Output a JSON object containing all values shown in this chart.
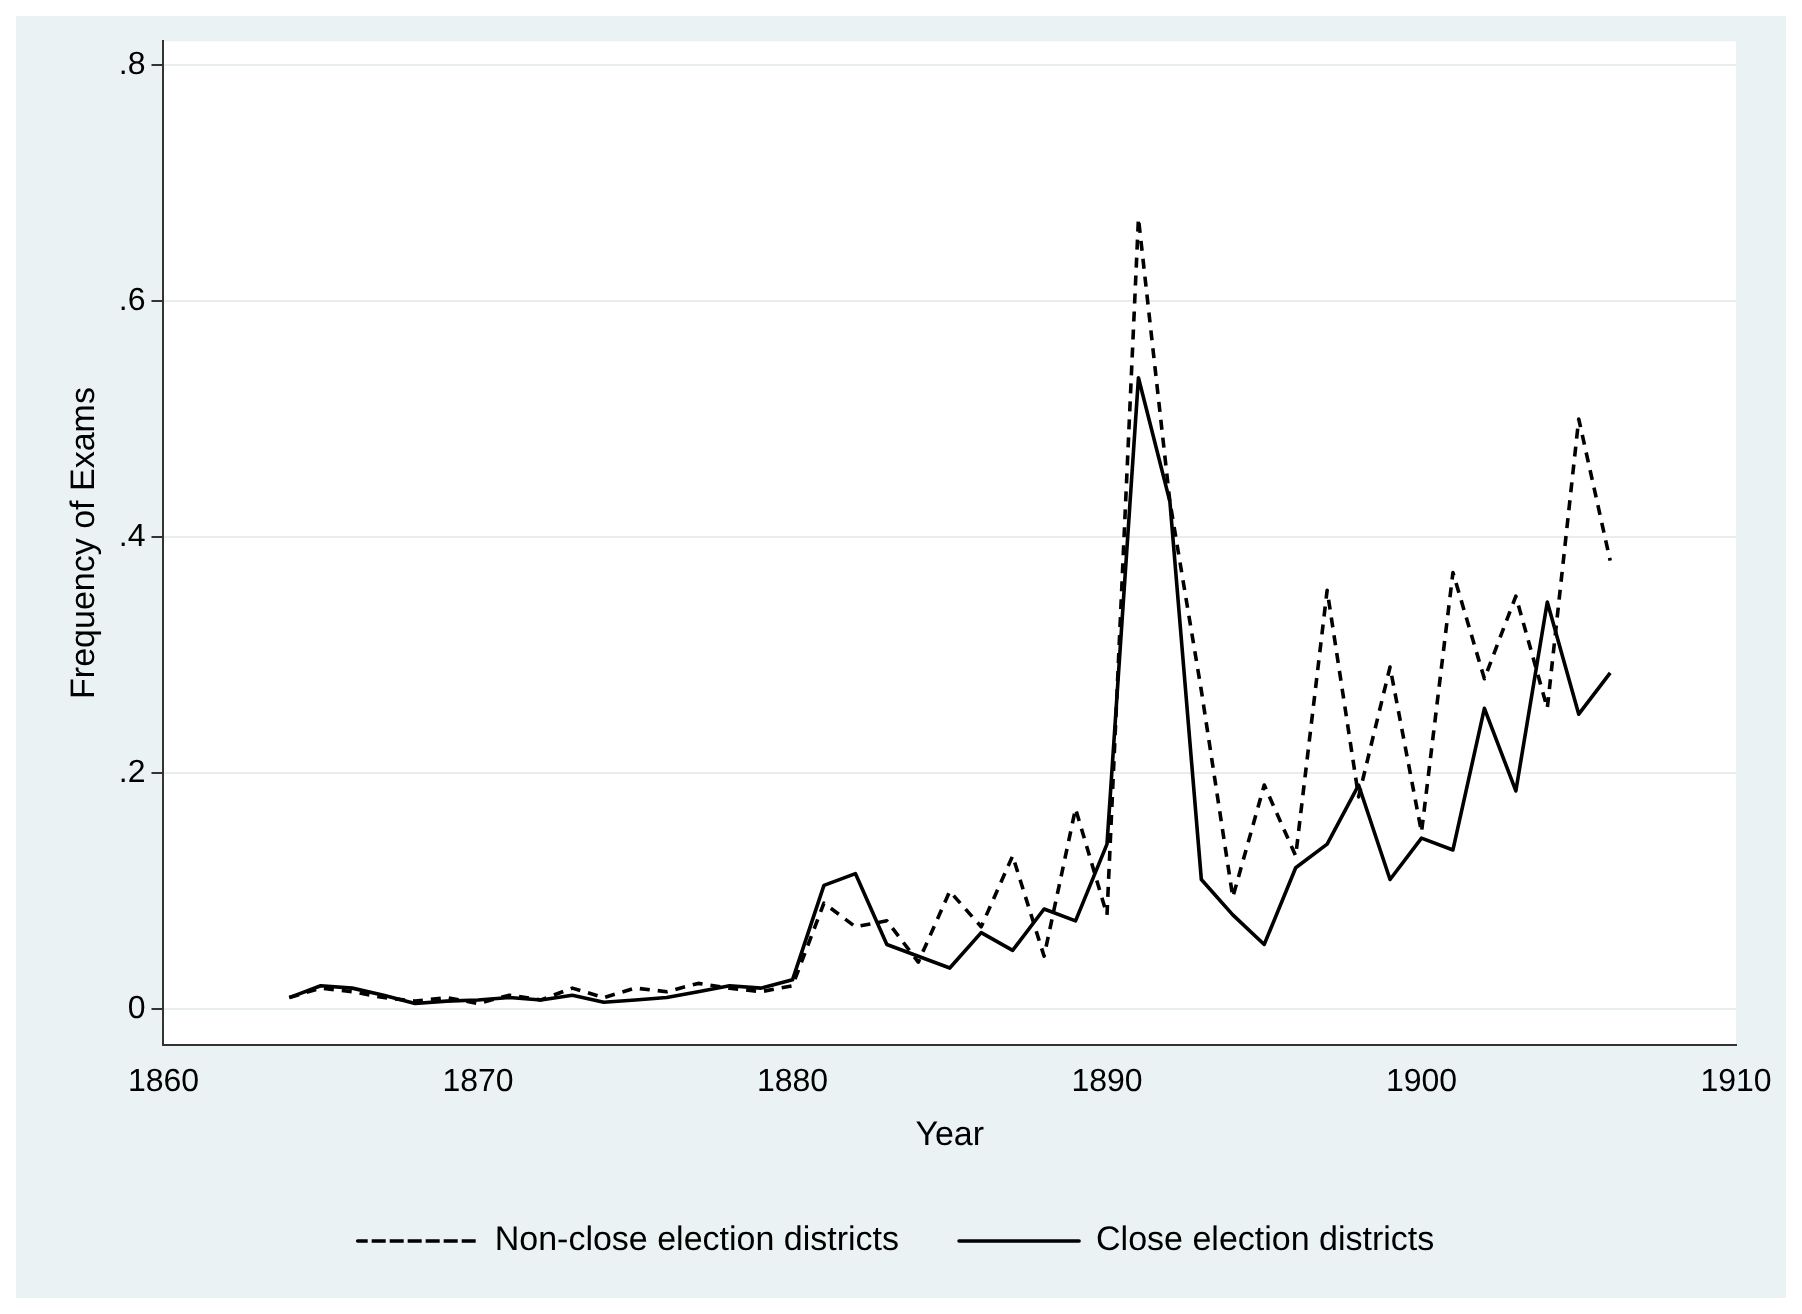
{
  "chart_data": {
    "type": "line",
    "xlabel": "Year",
    "ylabel": "Frequency of Exams",
    "x": [
      1864,
      1865,
      1866,
      1867,
      1868,
      1869,
      1870,
      1871,
      1872,
      1873,
      1874,
      1875,
      1876,
      1877,
      1878,
      1879,
      1880,
      1881,
      1882,
      1883,
      1884,
      1885,
      1886,
      1887,
      1888,
      1889,
      1890,
      1891,
      1892,
      1893,
      1894,
      1895,
      1896,
      1897,
      1898,
      1899,
      1900,
      1901,
      1902,
      1903,
      1904,
      1905,
      1906
    ],
    "series": [
      {
        "name": "Non-close election districts",
        "color": "#000000",
        "line_style": "dashed",
        "values": [
          0.01,
          0.018,
          0.015,
          0.01,
          0.007,
          0.01,
          0.005,
          0.012,
          0.008,
          0.018,
          0.01,
          0.018,
          0.015,
          0.022,
          0.018,
          0.015,
          0.02,
          0.09,
          0.07,
          0.075,
          0.04,
          0.1,
          0.07,
          0.13,
          0.045,
          0.17,
          0.08,
          0.67,
          0.43,
          0.27,
          0.095,
          0.19,
          0.13,
          0.355,
          0.18,
          0.29,
          0.15,
          0.37,
          0.28,
          0.35,
          0.255,
          0.5,
          0.38
        ]
      },
      {
        "name": "Close election districts",
        "color": "#000000",
        "line_style": "solid",
        "values": [
          0.01,
          0.02,
          0.018,
          0.012,
          0.005,
          0.007,
          0.008,
          0.01,
          0.008,
          0.012,
          0.006,
          0.008,
          0.01,
          0.015,
          0.02,
          0.018,
          0.025,
          0.105,
          0.115,
          0.055,
          0.045,
          0.035,
          0.065,
          0.05,
          0.085,
          0.075,
          0.14,
          0.535,
          0.43,
          0.11,
          0.08,
          0.055,
          0.12,
          0.14,
          0.19,
          0.11,
          0.145,
          0.135,
          0.255,
          0.185,
          0.345,
          0.25,
          0.285
        ]
      }
    ],
    "xlim": [
      1860,
      1910
    ],
    "xticks": [
      1860,
      1870,
      1880,
      1890,
      1900,
      1910
    ],
    "ylim": [
      -0.03,
      0.82
    ],
    "yticks": [
      {
        "value": 0,
        "label": "0"
      },
      {
        "value": 0.2,
        "label": ".2"
      },
      {
        "value": 0.4,
        "label": ".4"
      },
      {
        "value": 0.6,
        "label": ".6"
      },
      {
        "value": 0.8,
        "label": ".8"
      }
    ],
    "grid": "y",
    "legend": "bottom",
    "marker": "none"
  }
}
